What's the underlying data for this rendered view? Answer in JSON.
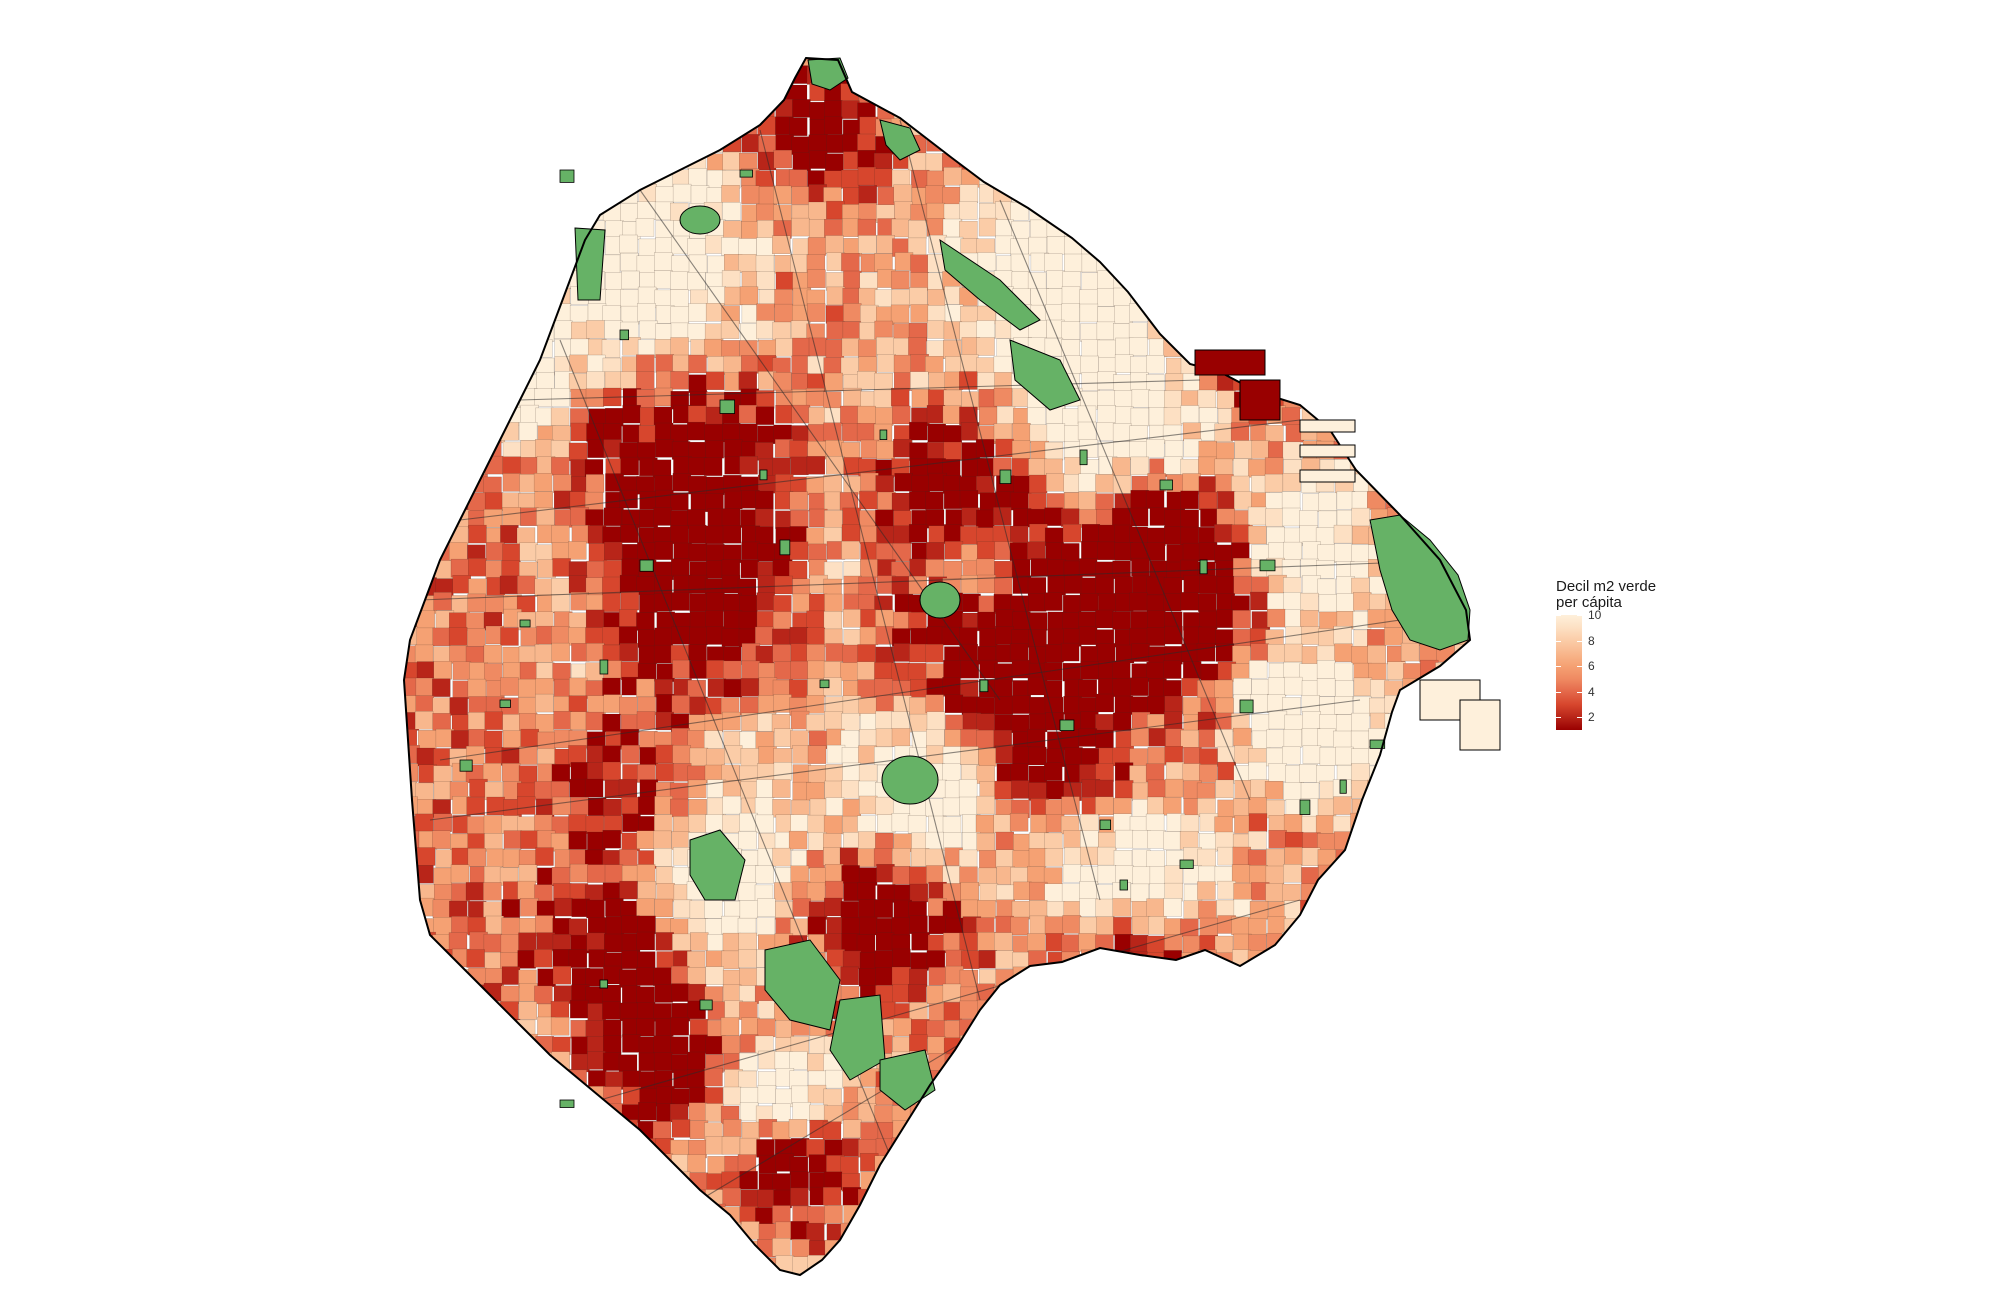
{
  "legend": {
    "title_line1": "Decil m2 verde",
    "title_line2": "per cápita",
    "ticks": [
      {
        "value": 10,
        "label": "10"
      },
      {
        "value": 8,
        "label": "8"
      },
      {
        "value": 6,
        "label": "6"
      },
      {
        "value": 4,
        "label": "4"
      },
      {
        "value": 2,
        "label": "2"
      }
    ],
    "range": [
      1,
      10
    ]
  },
  "colors": {
    "decile_scale": [
      "#990000",
      "#b82519",
      "#d7462d",
      "#e4684a",
      "#ef8a62",
      "#f5a173",
      "#f8b78d",
      "#fbcca7",
      "#fde0c3",
      "#fef0db"
    ],
    "green_space": "#66b266",
    "border": "#000000"
  },
  "map": {
    "region": "city-districts",
    "green_space_label": "green-space"
  }
}
